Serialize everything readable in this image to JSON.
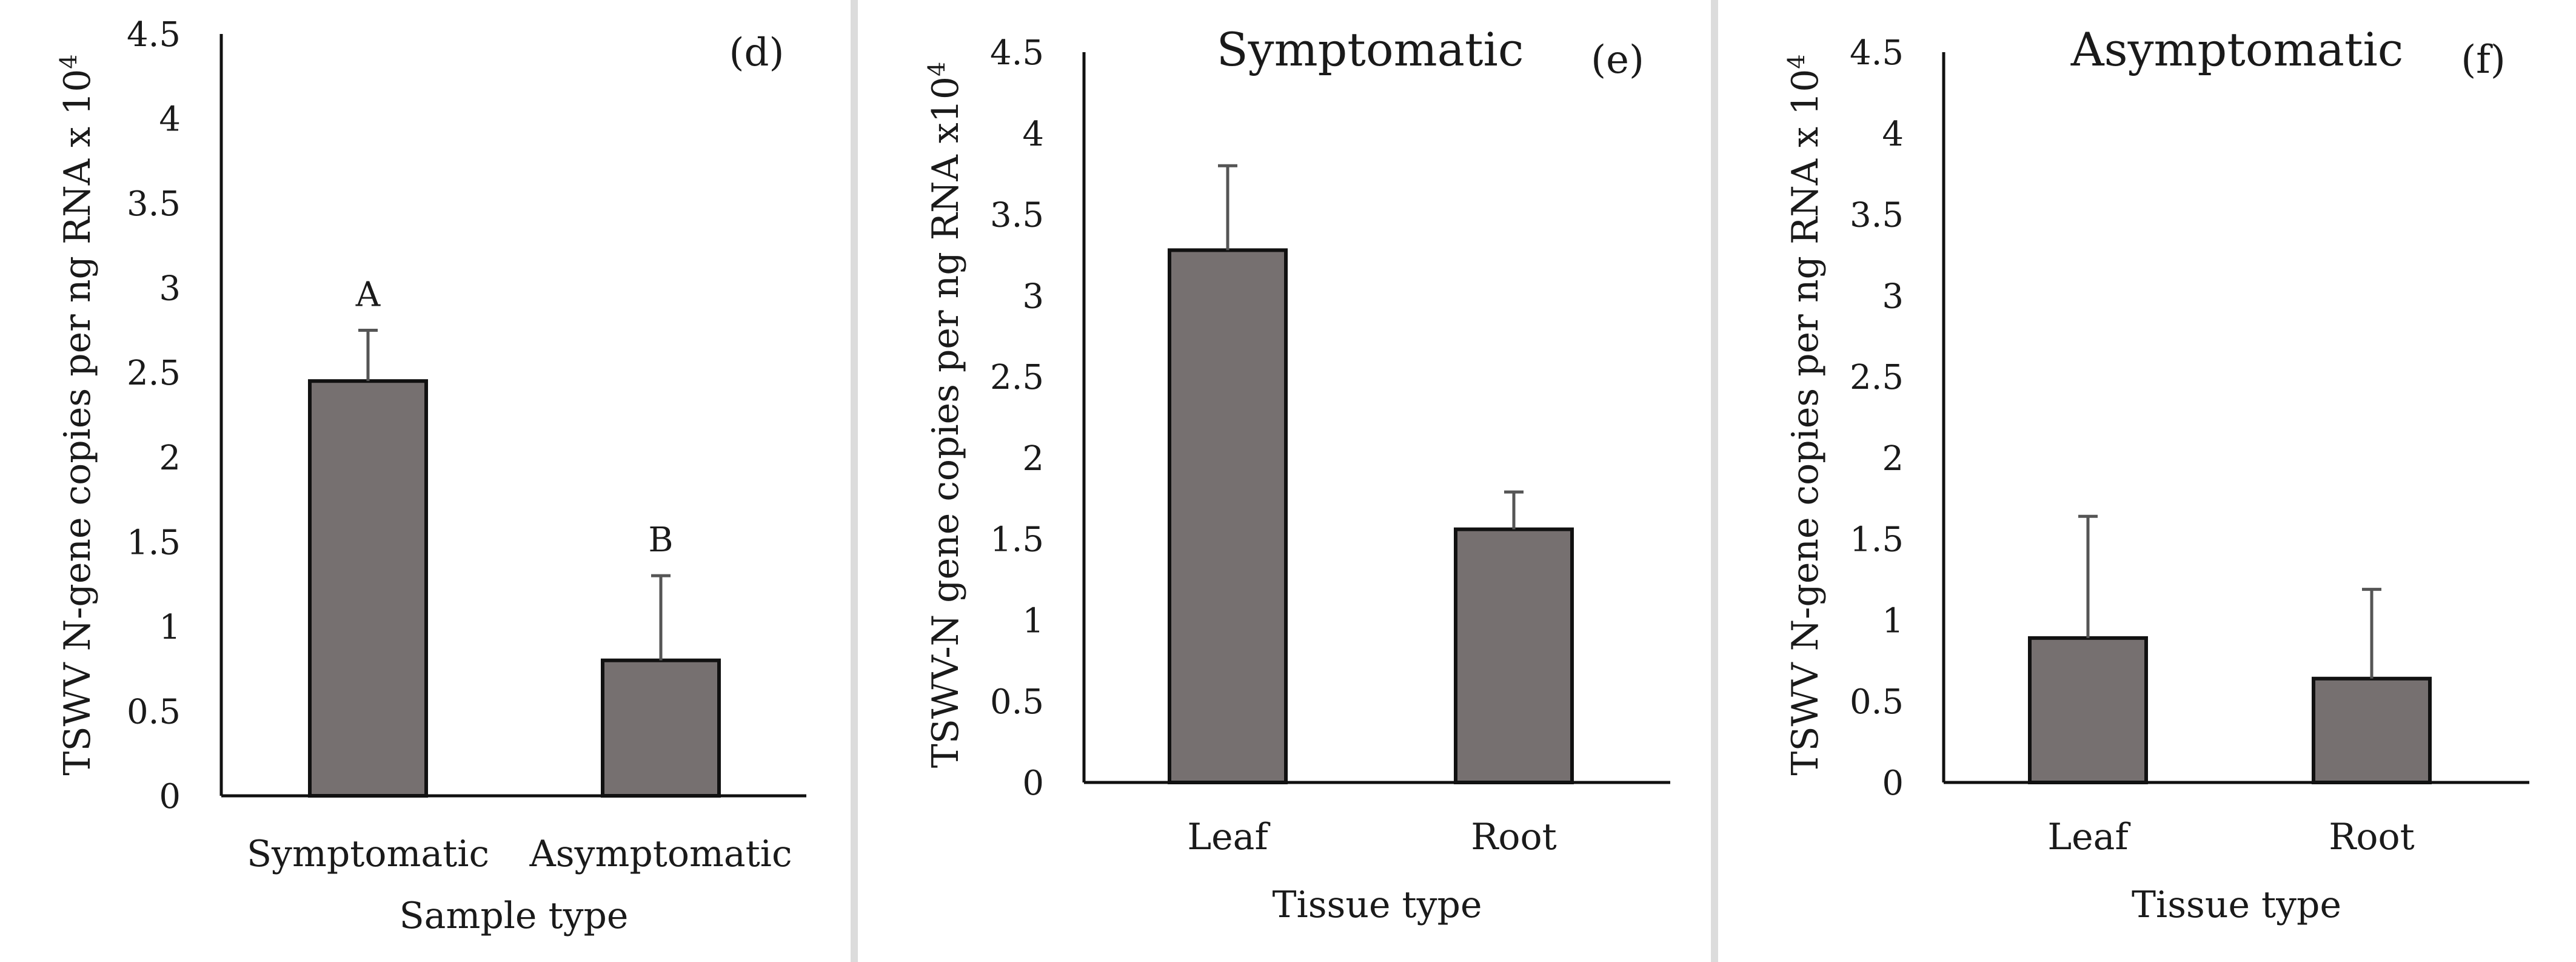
{
  "bar_color": "#767070",
  "bar_stroke": "#111111",
  "errorbar_color": "#555555",
  "chart_data": [
    {
      "type": "bar",
      "panel": "(d)",
      "title": "",
      "xlabel": "Sample type",
      "ylabel": "TSWV N-gene copies per ng RNA x 10",
      "ylabel_sup": "4",
      "categories": [
        "Symptomatic",
        "Asymptomatic"
      ],
      "values": [
        2.45,
        0.8
      ],
      "errors": [
        0.3,
        0.5
      ],
      "letters": [
        "A",
        "B"
      ],
      "ylim": [
        0,
        4.5
      ],
      "yticks": [
        "0",
        "0.5",
        "1",
        "1.5",
        "2",
        "2.5",
        "3",
        "3.5",
        "4",
        "4.5"
      ]
    },
    {
      "type": "bar",
      "panel": "(e)",
      "title": "Symptomatic",
      "xlabel": "Tissue type",
      "ylabel": "TSWV-N gene copies per ng RNA x10",
      "ylabel_sup": "4",
      "categories": [
        "Leaf",
        "Root"
      ],
      "values": [
        3.28,
        1.56
      ],
      "errors": [
        0.52,
        0.23
      ],
      "letters": [
        "",
        ""
      ],
      "ylim": [
        0,
        4.5
      ],
      "yticks": [
        "0",
        "0.5",
        "1",
        "1.5",
        "2",
        "2.5",
        "3",
        "3.5",
        "4",
        "4.5"
      ]
    },
    {
      "type": "bar",
      "panel": "(f)",
      "title": "Asymptomatic",
      "xlabel": "Tissue type",
      "ylabel": "TSWV N-gene copies per ng RNA x 10",
      "ylabel_sup": "4",
      "categories": [
        "Leaf",
        "Root"
      ],
      "values": [
        0.89,
        0.64
      ],
      "errors": [
        0.75,
        0.55
      ],
      "letters": [
        "",
        ""
      ],
      "ylim": [
        0,
        4.5
      ],
      "yticks": [
        "0",
        "0.5",
        "1",
        "1.5",
        "2",
        "2.5",
        "3",
        "3.5",
        "4",
        "4.5"
      ]
    }
  ]
}
